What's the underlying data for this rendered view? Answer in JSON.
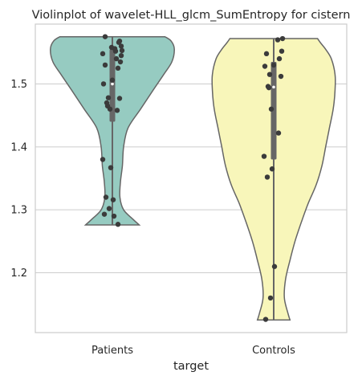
{
  "chart_data": {
    "type": "violin",
    "title": "Violinplot of wavelet-HLL_glcm_SumEntropy for cistern",
    "xlabel": "target",
    "ylabel": "",
    "ylim": [
      1.105,
      1.595
    ],
    "yticks": [
      1.2,
      1.3,
      1.4,
      1.5
    ],
    "ytick_labels": [
      "1.2",
      "1.3",
      "1.4",
      "1.5"
    ],
    "grid": true,
    "categories": [
      "Patients",
      "Controls"
    ],
    "series": [
      {
        "category": "Patients",
        "color": "#96cbc1",
        "range": [
          1.276,
          1.575
        ],
        "box": {
          "q1": 1.44,
          "median": 1.5,
          "q3": 1.555
        },
        "density": [
          [
            1.276,
            0.43
          ],
          [
            1.285,
            0.33
          ],
          [
            1.3,
            0.18
          ],
          [
            1.32,
            0.12
          ],
          [
            1.345,
            0.13
          ],
          [
            1.37,
            0.16
          ],
          [
            1.4,
            0.18
          ],
          [
            1.43,
            0.25
          ],
          [
            1.46,
            0.45
          ],
          [
            1.49,
            0.65
          ],
          [
            1.515,
            0.82
          ],
          [
            1.535,
            0.95
          ],
          [
            1.555,
            0.99
          ],
          [
            1.568,
            0.94
          ],
          [
            1.575,
            0.84
          ]
        ],
        "points": [
          1.575,
          1.568,
          1.566,
          1.56,
          1.558,
          1.556,
          1.553,
          1.552,
          1.548,
          1.545,
          1.54,
          1.535,
          1.53,
          1.525,
          1.506,
          1.5,
          1.478,
          1.477,
          1.47,
          1.465,
          1.46,
          1.458,
          1.38,
          1.367,
          1.32,
          1.316,
          1.302,
          1.293,
          1.29,
          1.277
        ]
      },
      {
        "category": "Controls",
        "color": "#f8f6ba",
        "range": [
          1.125,
          1.572
        ],
        "box": {
          "q1": 1.38,
          "median": 1.495,
          "q3": 1.535
        },
        "density": [
          [
            1.125,
            0.26
          ],
          [
            1.135,
            0.23
          ],
          [
            1.16,
            0.17
          ],
          [
            1.19,
            0.19
          ],
          [
            1.22,
            0.26
          ],
          [
            1.25,
            0.34
          ],
          [
            1.28,
            0.44
          ],
          [
            1.31,
            0.55
          ],
          [
            1.34,
            0.68
          ],
          [
            1.37,
            0.77
          ],
          [
            1.4,
            0.83
          ],
          [
            1.43,
            0.89
          ],
          [
            1.46,
            0.95
          ],
          [
            1.49,
            0.98
          ],
          [
            1.515,
            0.98
          ],
          [
            1.54,
            0.92
          ],
          [
            1.555,
            0.83
          ],
          [
            1.565,
            0.75
          ],
          [
            1.572,
            0.7
          ]
        ],
        "points": [
          1.572,
          1.57,
          1.552,
          1.548,
          1.54,
          1.53,
          1.528,
          1.515,
          1.512,
          1.496,
          1.494,
          1.46,
          1.422,
          1.385,
          1.365,
          1.352,
          1.21,
          1.16,
          1.126
        ]
      }
    ]
  }
}
